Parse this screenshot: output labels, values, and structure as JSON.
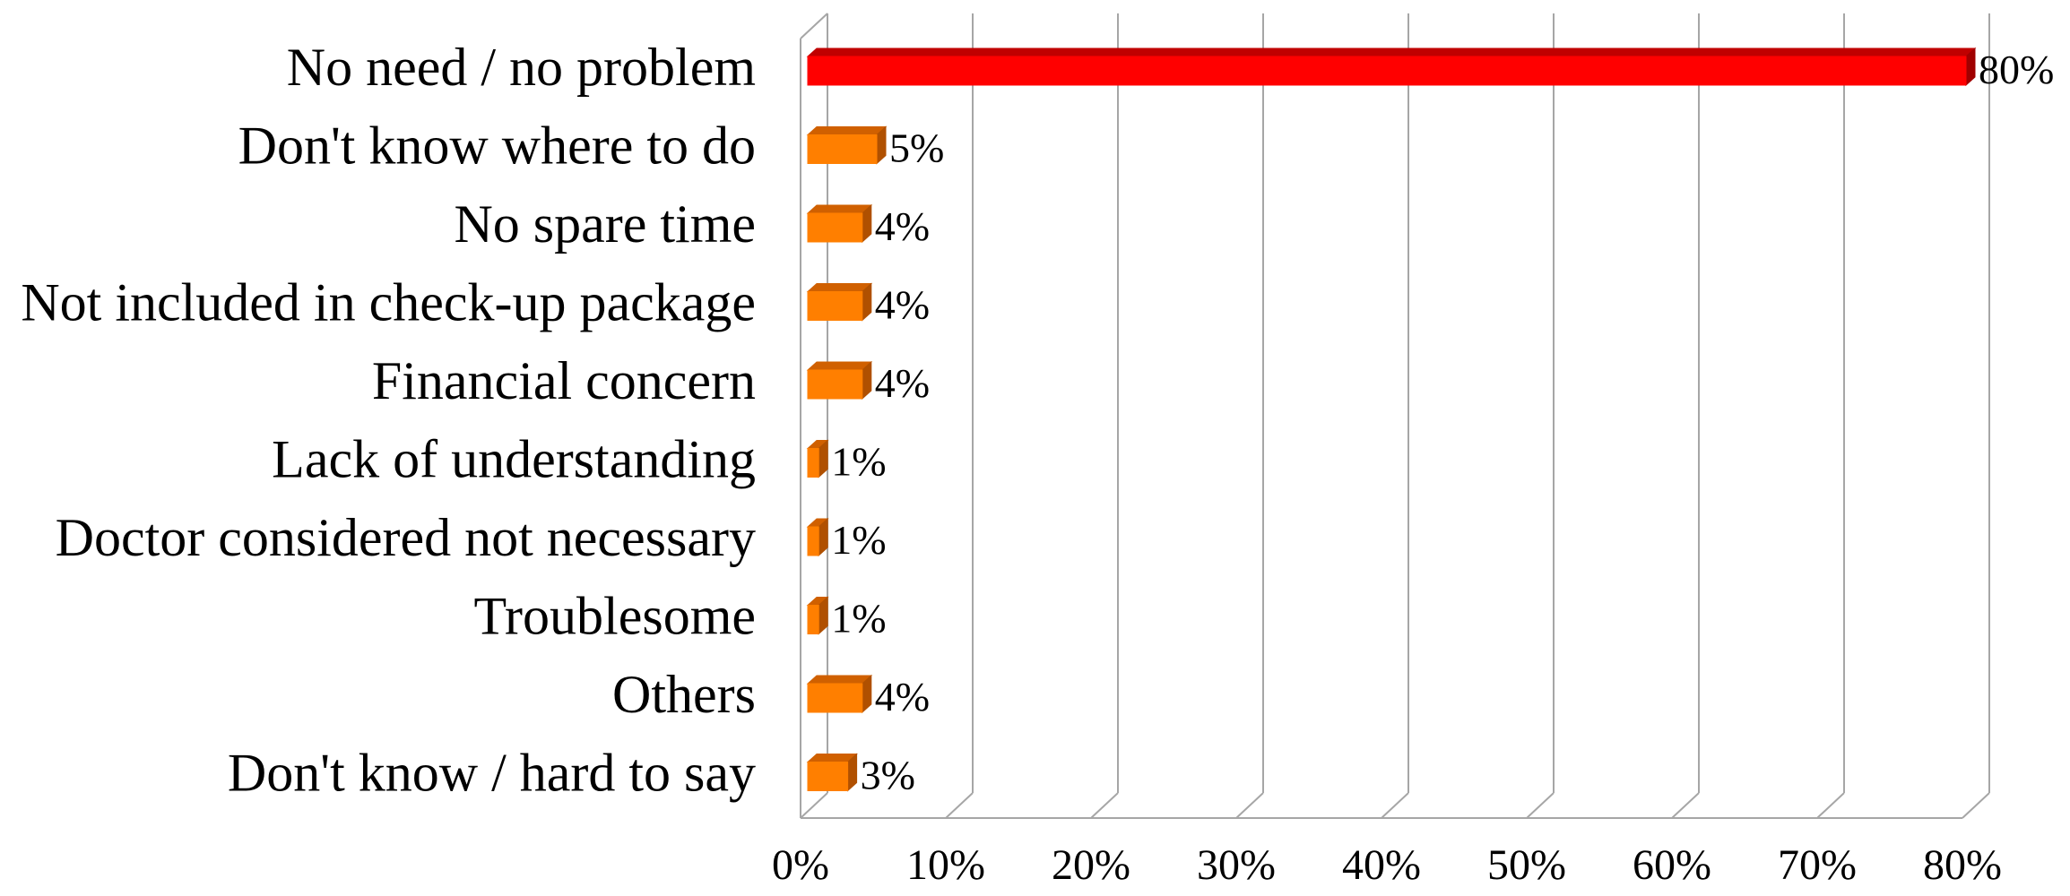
{
  "chart_data": {
    "type": "bar",
    "orientation": "horizontal",
    "style": "3d",
    "categories": [
      "No need / no problem",
      "Don't know where to do",
      "No spare time",
      "Not included in check-up package",
      "Financial concern",
      "Lack of understanding",
      "Doctor considered not necessary",
      "Troublesome",
      "Others",
      "Don't know / hard to say"
    ],
    "values": [
      80,
      5,
      4,
      4,
      4,
      1,
      1,
      1,
      4,
      3
    ],
    "data_labels": [
      "80%",
      "5%",
      "4%",
      "4%",
      "4%",
      "1%",
      "1%",
      "1%",
      "4%",
      "3%"
    ],
    "highlight_index": 0,
    "x_ticks": [
      0,
      10,
      20,
      30,
      40,
      50,
      60,
      70,
      80
    ],
    "x_tick_labels": [
      "0%",
      "10%",
      "20%",
      "30%",
      "40%",
      "50%",
      "60%",
      "70%",
      "80%"
    ],
    "xlim": [
      0,
      80
    ],
    "title": "",
    "xlabel": "",
    "ylabel": "",
    "grid": "vertical",
    "legend": "none",
    "colors": {
      "highlight_front": "#ff0000",
      "highlight_top": "#c00000",
      "highlight_side": "#a00000",
      "bar_front": "#ff7f00",
      "bar_top": "#d06000",
      "bar_side": "#b05000",
      "gridline": "#a6a6a6",
      "axis": "#a6a6a6"
    }
  }
}
